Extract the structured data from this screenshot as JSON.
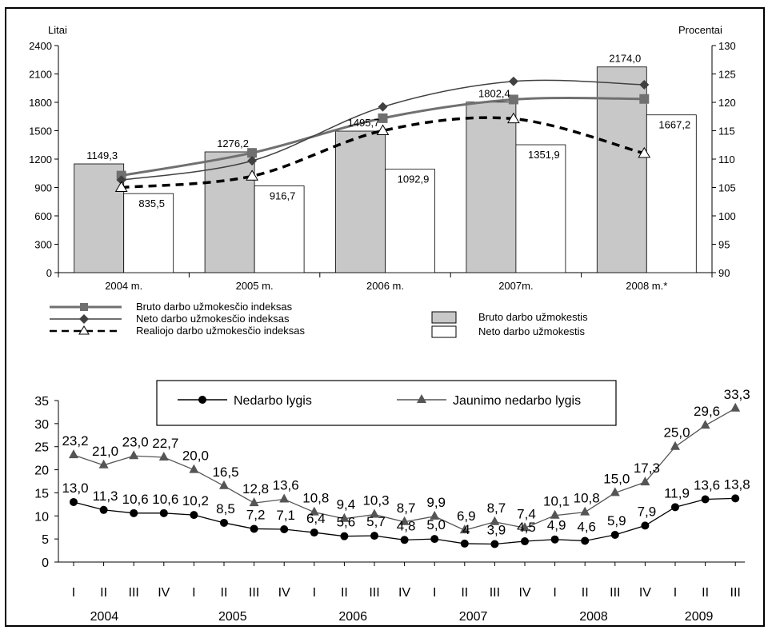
{
  "colors": {
    "bruto_bar": "#c8c8c8",
    "neto_bar": "#ffffff",
    "bruto_index_line": "#707070",
    "neto_index_line": "#404040",
    "real_index_line": "#000000",
    "unemployment_line": "#000000",
    "youth_line": "#555555"
  },
  "chart_data": [
    {
      "type": "bar",
      "left_axis_label": "Litai",
      "right_axis_label": "Procentai",
      "categories": [
        "2004 m.",
        "2005 m.",
        "2006 m.",
        "2007m.",
        "2008 m.*"
      ],
      "ylim": [
        0,
        2400
      ],
      "y_ticks": [
        0,
        300,
        600,
        900,
        1200,
        1500,
        1800,
        2100,
        2400
      ],
      "y2lim": [
        90,
        130
      ],
      "y2_ticks": [
        90,
        95,
        100,
        105,
        110,
        115,
        120,
        125,
        130
      ],
      "bar_series": [
        {
          "name": "Bruto darbo užmokestis",
          "values": [
            1149.3,
            1276.2,
            1495.7,
            1802.4,
            2174.0
          ],
          "labels": [
            "1149,3",
            "1276,2",
            "1495,7",
            "1802,4",
            "2174,0"
          ]
        },
        {
          "name": "Neto darbo užmokestis",
          "values": [
            835.5,
            916.7,
            1092.9,
            1351.9,
            1667.2
          ],
          "labels": [
            "835,5",
            "916,7",
            "1092,9",
            "1351,9",
            "1667,2"
          ]
        }
      ],
      "line_series": [
        {
          "name": "Bruto darbo užmokesčio indeksas",
          "values": [
            107.1,
            111.1,
            117.2,
            120.5,
            120.6
          ]
        },
        {
          "name": "Neto darbo užmokesčio indeksas",
          "values": [
            106.3,
            109.7,
            119.2,
            123.7,
            123.1
          ]
        },
        {
          "name": "Realiojo darbo užmokesčio indeksas",
          "values": [
            105.0,
            107.0,
            115.0,
            117.1,
            111.0
          ]
        }
      ],
      "legend": [
        "Bruto darbo užmokesčio indeksas",
        "Neto darbo užmokesčio indeksas",
        "Realiojo darbo užmokesčio indeksas",
        "Bruto darbo užmokestis",
        "Neto darbo užmokestis"
      ]
    },
    {
      "type": "line",
      "x_quarters": [
        "I",
        "II",
        "III",
        "IV",
        "I",
        "II",
        "III",
        "IV",
        "I",
        "II",
        "III",
        "IV",
        "I",
        "II",
        "III",
        "IV",
        "I",
        "II",
        "III",
        "IV",
        "I",
        "II",
        "III"
      ],
      "years": [
        {
          "label": "2004",
          "start": 0,
          "end": 3
        },
        {
          "label": "2005",
          "start": 4,
          "end": 7
        },
        {
          "label": "2006",
          "start": 8,
          "end": 11
        },
        {
          "label": "2007",
          "start": 12,
          "end": 15
        },
        {
          "label": "2008",
          "start": 16,
          "end": 19
        },
        {
          "label": "2009",
          "start": 20,
          "end": 22
        }
      ],
      "ylim": [
        0,
        35
      ],
      "y_ticks": [
        0,
        5,
        10,
        15,
        20,
        25,
        30,
        35
      ],
      "series": [
        {
          "name": "Nedarbo lygis",
          "values": [
            13.0,
            11.3,
            10.6,
            10.6,
            10.2,
            8.5,
            7.2,
            7.1,
            6.4,
            5.6,
            5.7,
            4.8,
            5.0,
            4.0,
            3.9,
            4.5,
            4.9,
            4.6,
            5.9,
            7.9,
            11.9,
            13.6,
            13.8
          ],
          "labels": [
            "13,0",
            "11,3",
            "10,6",
            "10,6",
            "10,2",
            "8,5",
            "7,2",
            "7,1",
            "6,4",
            "5,6",
            "5,7",
            "4,8",
            "5,0",
            "4",
            "3,9",
            "4,5",
            "4,9",
            "4,6",
            "5,9",
            "7,9",
            "11,9",
            "13,6",
            "13,8"
          ]
        },
        {
          "name": "Jaunimo nedarbo lygis",
          "values": [
            23.2,
            21.0,
            23.0,
            22.7,
            20.0,
            16.5,
            12.8,
            13.6,
            10.8,
            9.4,
            10.3,
            8.7,
            9.9,
            6.9,
            8.7,
            7.4,
            10.1,
            10.8,
            15.0,
            17.3,
            25.0,
            29.6,
            33.3
          ],
          "labels": [
            "23,2",
            "21,0",
            "23,0",
            "22,7",
            "20,0",
            "16,5",
            "12,8",
            "13,6",
            "10,8",
            "9,4",
            "10,3",
            "8,7",
            "9,9",
            "6,9",
            "8,7",
            "7,4",
            "10,1",
            "10,8",
            "15,0",
            "17,3",
            "25,0",
            "29,6",
            "33,3"
          ]
        }
      ]
    }
  ]
}
